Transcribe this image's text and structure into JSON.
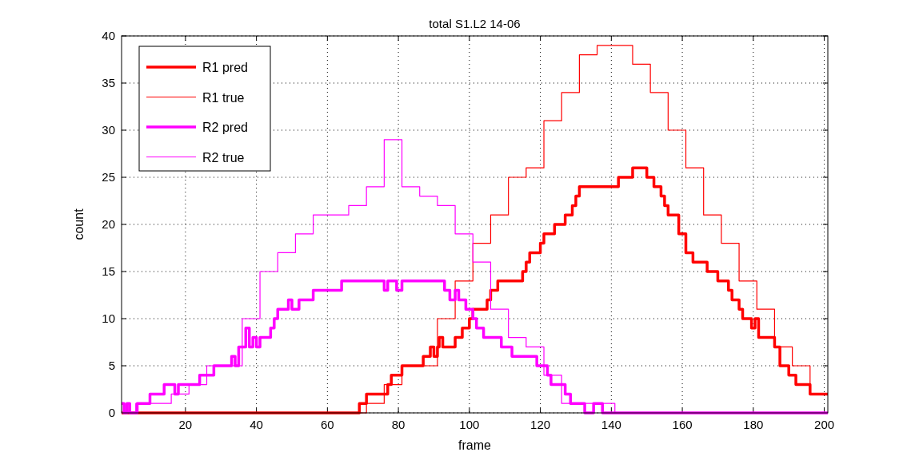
{
  "chart_data": {
    "type": "step",
    "title": "total S1.L2 14-06",
    "xlabel": "frame",
    "ylabel": "count",
    "xlim": [
      2,
      201
    ],
    "xticks": [
      20,
      40,
      60,
      80,
      100,
      120,
      140,
      160,
      180,
      200
    ],
    "ylim": [
      0,
      40
    ],
    "yticks": [
      0,
      5,
      10,
      15,
      20,
      25,
      30,
      35,
      40
    ],
    "grid": true,
    "legend": "top left",
    "line_style": "solid",
    "series": [
      {
        "name": "R1 pred",
        "color": "#ff0000",
        "x": [
          2,
          69,
          71,
          77,
          78,
          81,
          87,
          89,
          90,
          91,
          91.5,
          92.5,
          96,
          98,
          100,
          101,
          105,
          106,
          108,
          115,
          116,
          117,
          120,
          121,
          124,
          127,
          129,
          130,
          131,
          142,
          146,
          150,
          152,
          154,
          155,
          156,
          159,
          161,
          163,
          167,
          170,
          173,
          174,
          176,
          177,
          179.5,
          180.5,
          181.5,
          186,
          187.5,
          190,
          192,
          196,
          201
        ],
        "values": [
          0,
          1,
          2,
          3,
          4,
          5,
          6,
          7,
          6,
          7,
          8,
          7,
          8,
          9,
          10,
          11,
          12,
          13,
          14,
          15,
          16,
          17,
          18,
          19,
          20,
          21,
          22,
          23,
          24,
          25,
          26,
          25,
          24,
          23,
          22,
          21,
          19,
          17,
          16,
          15,
          14,
          13,
          12,
          11,
          10,
          9,
          10,
          8,
          7,
          5,
          4,
          3,
          2,
          2
        ]
      },
      {
        "name": "R1 true",
        "color": "#ff0000",
        "x": [
          2,
          71,
          76,
          81,
          91,
          96,
          101,
          106,
          111,
          116,
          121,
          126,
          131,
          136,
          146,
          151,
          156,
          161,
          166,
          171,
          176,
          181,
          186,
          191,
          196,
          201
        ],
        "values": [
          0,
          1,
          3,
          5,
          10,
          14,
          18,
          21,
          25,
          26,
          31,
          34,
          38,
          39,
          37,
          34,
          30,
          26,
          21,
          18,
          14,
          11,
          7,
          5,
          2,
          2
        ]
      },
      {
        "name": "R2 pred",
        "color": "#ff00ff",
        "x": [
          2,
          2.7,
          3.5,
          4.3,
          6.4,
          10,
          14,
          17,
          18,
          24,
          28,
          33,
          34,
          35,
          37,
          38,
          39,
          40,
          41,
          44,
          45,
          46,
          49,
          50,
          52,
          56,
          64,
          76,
          77,
          79.5,
          81,
          93,
          94.5,
          96,
          97,
          99,
          101,
          102,
          104,
          109,
          112,
          119,
          122,
          123,
          127,
          128.5,
          132.5,
          135,
          137.5,
          201
        ],
        "values": [
          1,
          0,
          1,
          0,
          1,
          2,
          3,
          2,
          3,
          4,
          5,
          6,
          5,
          7,
          9,
          7,
          8,
          7,
          8,
          9,
          10,
          11,
          12,
          11,
          12,
          13,
          14,
          13,
          14,
          13,
          14,
          13,
          12,
          13,
          12,
          11,
          10,
          9,
          8,
          7,
          6,
          5,
          4,
          3,
          2,
          1,
          0,
          1,
          0,
          0
        ]
      },
      {
        "name": "R2 true",
        "color": "#ff00ff",
        "x": [
          2,
          6,
          16,
          21,
          26,
          36,
          41,
          46,
          51,
          56,
          66,
          71,
          76,
          81,
          86,
          91,
          96,
          101,
          106,
          111,
          116,
          121,
          126,
          141,
          201
        ],
        "values": [
          0,
          1,
          2,
          3,
          5,
          10,
          15,
          17,
          19,
          21,
          22,
          24,
          29,
          24,
          23,
          22,
          19,
          16,
          11,
          8,
          7,
          4,
          1,
          0,
          0
        ]
      }
    ]
  }
}
